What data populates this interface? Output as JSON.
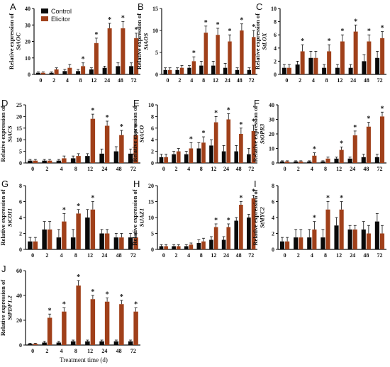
{
  "legend": {
    "control": "Control",
    "elicitor": "Elicitor"
  },
  "colors": {
    "control": "#0a0a0a",
    "elicitor": "#a0401a",
    "axis": "#111111"
  },
  "xlabel": "Treatment time (d)",
  "chart_data": [
    {
      "type": "bar",
      "letter": "A",
      "ylabel_prefix": "Relative expression of",
      "gene": "StAOC",
      "categories": [
        "0",
        "2",
        "4",
        "8",
        "12",
        "24",
        "48",
        "72"
      ],
      "ylim": [
        0,
        40
      ],
      "yticks": [
        0,
        10,
        20,
        30,
        40
      ],
      "series": [
        {
          "name": "Control",
          "values": [
            1,
            1,
            2,
            2,
            3,
            4,
            5,
            5
          ],
          "err": [
            0.5,
            0.5,
            1,
            1,
            1,
            1,
            2,
            2
          ]
        },
        {
          "name": "Elicitor",
          "values": [
            1,
            3,
            4,
            5,
            19,
            28,
            28,
            22
          ],
          "err": [
            0.5,
            1,
            2,
            2,
            3,
            3,
            4,
            3
          ]
        }
      ],
      "sig": [
        4,
        5,
        6,
        7,
        8
      ]
    },
    {
      "type": "bar",
      "letter": "B",
      "ylabel_prefix": "Relative expression of",
      "gene": "StAOS",
      "categories": [
        "0",
        "2",
        "4",
        "8",
        "12",
        "24",
        "48",
        "72"
      ],
      "ylim": [
        0,
        15
      ],
      "yticks": [
        0,
        5,
        10,
        15
      ],
      "series": [
        {
          "name": "Control",
          "values": [
            1,
            1,
            1.5,
            2,
            2,
            1.5,
            1,
            1
          ],
          "err": [
            0.5,
            0.5,
            0.5,
            1,
            1,
            1,
            0.5,
            0.5
          ]
        },
        {
          "name": "Elicitor",
          "values": [
            1,
            1.5,
            3,
            9.5,
            9,
            7.5,
            10,
            8.5
          ],
          "err": [
            0.5,
            0.5,
            1,
            1.5,
            1.5,
            1.5,
            1.5,
            1.5
          ]
        }
      ],
      "sig": [
        3,
        4,
        5,
        6,
        7,
        8
      ]
    },
    {
      "type": "bar",
      "letter": "C",
      "ylabel_prefix": "Relative expression of",
      "gene": "StLOX",
      "categories": [
        "0",
        "2",
        "4",
        "8",
        "12",
        "24",
        "48",
        "72"
      ],
      "ylim": [
        0,
        10
      ],
      "yticks": [
        0,
        2,
        4,
        6,
        8,
        10
      ],
      "series": [
        {
          "name": "Control",
          "values": [
            1,
            1.5,
            2.5,
            1,
            1,
            1,
            2,
            2.5
          ],
          "err": [
            0.5,
            0.5,
            1,
            0.5,
            0.5,
            0.5,
            1,
            1
          ]
        },
        {
          "name": "Elicitor",
          "values": [
            1,
            3.5,
            2.5,
            3.5,
            5,
            6.5,
            5,
            5.5
          ],
          "err": [
            0.5,
            1,
            1,
            1,
            1,
            1,
            1,
            1
          ]
        }
      ],
      "sig": [
        2,
        4,
        5,
        6,
        7,
        8
      ]
    },
    {
      "type": "bar",
      "letter": "D",
      "ylabel_prefix": "Relative expression of",
      "gene": "StACS",
      "categories": [
        "0",
        "2",
        "4",
        "8",
        "12",
        "24",
        "48",
        "72"
      ],
      "ylim": [
        0,
        25
      ],
      "yticks": [
        0,
        5,
        10,
        15,
        20,
        25
      ],
      "series": [
        {
          "name": "Control",
          "values": [
            1,
            1,
            1,
            2,
            3,
            4,
            5,
            4
          ],
          "err": [
            0.5,
            0.5,
            0.5,
            1,
            1,
            2,
            2,
            2
          ]
        },
        {
          "name": "Elicitor",
          "values": [
            1,
            1,
            2,
            3,
            19,
            16,
            12,
            12
          ],
          "err": [
            0.5,
            0.5,
            1,
            1,
            2,
            2,
            2,
            2
          ]
        }
      ],
      "sig": [
        5,
        6,
        7,
        8
      ]
    },
    {
      "type": "bar",
      "letter": "E",
      "ylabel_prefix": "Relative expression of",
      "gene": "StACO",
      "categories": [
        "0",
        "2",
        "4",
        "8",
        "12",
        "24",
        "48",
        "72"
      ],
      "ylim": [
        0,
        10
      ],
      "yticks": [
        0,
        2,
        4,
        6,
        8,
        10
      ],
      "series": [
        {
          "name": "Control",
          "values": [
            1,
            1.5,
            1.5,
            2.5,
            3,
            2,
            2,
            1.5
          ],
          "err": [
            0.5,
            0.5,
            0.5,
            1,
            1,
            1,
            1,
            1
          ]
        },
        {
          "name": "Elicitor",
          "values": [
            1,
            2,
            2.5,
            3.5,
            7,
            7.5,
            5,
            5.5
          ],
          "err": [
            0.5,
            0.5,
            1,
            1,
            1,
            1,
            1,
            1
          ]
        }
      ],
      "sig": [
        3,
        4,
        5,
        6,
        7,
        8
      ]
    },
    {
      "type": "bar",
      "letter": "F",
      "ylabel_prefix": "Relative expression of",
      "gene": "StOPR3",
      "categories": [
        "0",
        "2",
        "4",
        "8",
        "12",
        "24",
        "48",
        "72"
      ],
      "ylim": [
        0,
        40
      ],
      "yticks": [
        0,
        10,
        20,
        30,
        40
      ],
      "series": [
        {
          "name": "Control",
          "values": [
            1,
            1,
            1,
            1,
            3,
            3,
            4,
            4
          ],
          "err": [
            0.5,
            0.5,
            0.5,
            0.5,
            1,
            1,
            2,
            2
          ]
        },
        {
          "name": "Elicitor",
          "values": [
            1,
            1,
            5,
            3,
            9,
            19,
            25,
            32
          ],
          "err": [
            0.5,
            0.5,
            2,
            1,
            2,
            3,
            3,
            3
          ]
        }
      ],
      "sig": [
        3,
        5,
        6,
        7,
        8
      ]
    },
    {
      "type": "bar",
      "letter": "G",
      "ylabel_prefix": "Relative expression of",
      "gene": "StCOI1",
      "categories": [
        "0",
        "2",
        "4",
        "8",
        "12",
        "24",
        "48",
        "72"
      ],
      "ylim": [
        0,
        8
      ],
      "yticks": [
        0,
        2,
        4,
        6,
        8
      ],
      "series": [
        {
          "name": "Control",
          "values": [
            1,
            2.5,
            1.5,
            1.5,
            4,
            2,
            1.5,
            1.5
          ],
          "err": [
            0.5,
            1,
            1,
            1,
            1,
            0.5,
            0.5,
            0.5
          ]
        },
        {
          "name": "Elicitor",
          "values": [
            1,
            2.5,
            3.5,
            4.5,
            5,
            2,
            1.5,
            1.5
          ],
          "err": [
            0.5,
            1,
            1,
            0.5,
            1,
            0.5,
            0.5,
            0.5
          ]
        }
      ],
      "sig": [
        3,
        4,
        5
      ]
    },
    {
      "type": "bar",
      "letter": "H",
      "ylabel_prefix": "Relative expression of",
      "gene": "StJAZ1",
      "categories": [
        "0",
        "2",
        "4",
        "8",
        "12",
        "24",
        "48",
        "72"
      ],
      "ylim": [
        0,
        20
      ],
      "yticks": [
        0,
        5,
        10,
        15,
        20
      ],
      "series": [
        {
          "name": "Control",
          "values": [
            1,
            1,
            1,
            2,
            3,
            3,
            9,
            10
          ],
          "err": [
            0.5,
            0.5,
            0.5,
            1,
            1,
            1,
            1,
            1
          ]
        },
        {
          "name": "Elicitor",
          "values": [
            1,
            1,
            1.5,
            2.5,
            7,
            7,
            14,
            16
          ],
          "err": [
            0.5,
            0.5,
            0.5,
            1,
            1,
            1,
            1,
            1
          ]
        }
      ],
      "sig": [
        5,
        6,
        7,
        8
      ]
    },
    {
      "type": "bar",
      "letter": "I",
      "ylabel_prefix": "Relative expression of",
      "gene": "StMYC2",
      "categories": [
        "0",
        "2",
        "4",
        "8",
        "12",
        "24",
        "48",
        "72"
      ],
      "ylim": [
        0,
        8
      ],
      "yticks": [
        0,
        2,
        4,
        6,
        8
      ],
      "series": [
        {
          "name": "Control",
          "values": [
            1,
            1.5,
            1.5,
            1.5,
            3,
            2.5,
            2.5,
            3.5
          ],
          "err": [
            0.5,
            1,
            1,
            1,
            1,
            0.5,
            1,
            1
          ]
        },
        {
          "name": "Elicitor",
          "values": [
            1,
            1.5,
            2.5,
            5,
            5,
            2.5,
            2,
            2
          ],
          "err": [
            0.5,
            1,
            1,
            1,
            1,
            0.5,
            1,
            1
          ]
        }
      ],
      "sig": [
        3,
        4,
        5
      ]
    },
    {
      "type": "bar",
      "letter": "J",
      "ylabel_prefix": "Relative expression of",
      "gene": "StPDF1.2",
      "categories": [
        "0",
        "2",
        "4",
        "8",
        "12",
        "24",
        "48",
        "72"
      ],
      "ylim": [
        0,
        60
      ],
      "yticks": [
        0,
        20,
        40,
        60
      ],
      "series": [
        {
          "name": "Control",
          "values": [
            1,
            2,
            2,
            3,
            3,
            3,
            3,
            3
          ],
          "err": [
            0.5,
            1,
            1,
            1,
            1,
            1,
            1,
            1
          ]
        },
        {
          "name": "Elicitor",
          "values": [
            1,
            22,
            27,
            48,
            37,
            35,
            33,
            27
          ],
          "err": [
            0.5,
            3,
            3,
            4,
            3,
            3,
            3,
            3
          ]
        }
      ],
      "sig": [
        2,
        3,
        4,
        5,
        6,
        7,
        8
      ]
    }
  ]
}
